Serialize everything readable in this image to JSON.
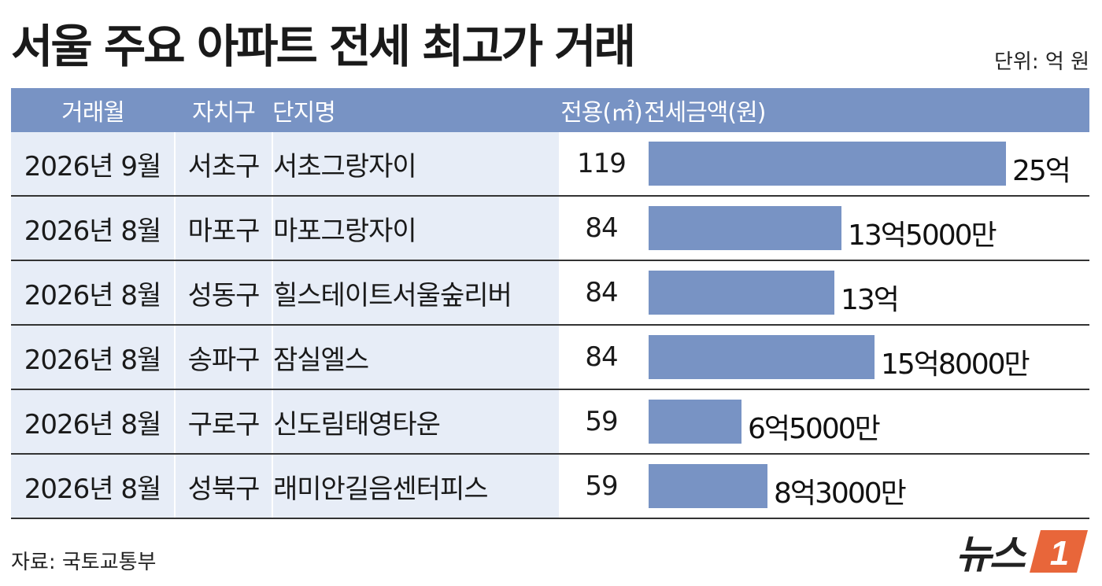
{
  "title": "서울 주요 아파트 전세 최고가 거래",
  "unit": "단위: 억 원",
  "source": "자료: 국토교통부",
  "logo": {
    "text": "뉴스",
    "mark": "1"
  },
  "colors": {
    "header_bg": "#7893c4",
    "bar": "#7893c4",
    "row_light": "#e7edf7",
    "logo_accent": "#e8663a"
  },
  "table": {
    "headers": {
      "month": "거래월",
      "gu": "자치구",
      "name": "단지명",
      "area": "전용(㎡)",
      "price": "전세금액(원)"
    },
    "rows": [
      {
        "month": "2026년 9월",
        "gu": "서초구",
        "name": "서초그랑자이",
        "area": "119",
        "price_label": "25억"
      },
      {
        "month": "2026년 8월",
        "gu": "마포구",
        "name": "마포그랑자이",
        "area": "84",
        "price_label": "13억5000만"
      },
      {
        "month": "2026년 8월",
        "gu": "성동구",
        "name": "힐스테이트서울숲리버",
        "area": "84",
        "price_label": "13억"
      },
      {
        "month": "2026년 8월",
        "gu": "송파구",
        "name": "잠실엘스",
        "area": "84",
        "price_label": "15억8000만"
      },
      {
        "month": "2026년 8월",
        "gu": "구로구",
        "name": "신도림태영타운",
        "area": "59",
        "price_label": "6억5000만"
      },
      {
        "month": "2026년 8월",
        "gu": "성북구",
        "name": "래미안길음센터피스",
        "area": "59",
        "price_label": "8억3000만"
      }
    ]
  },
  "chart_data": {
    "type": "bar",
    "orientation": "horizontal",
    "categories": [
      "서초그랑자이",
      "마포그랑자이",
      "힐스테이트서울숲리버",
      "잠실엘스",
      "신도림태영타운",
      "래미안길음센터피스"
    ],
    "values": [
      25,
      13.5,
      13,
      15.8,
      6.5,
      8.3
    ],
    "title": "서울 주요 아파트 전세 최고가 거래",
    "xlabel": "",
    "ylabel": "",
    "xlim": [
      0,
      25
    ],
    "grid": false
  }
}
